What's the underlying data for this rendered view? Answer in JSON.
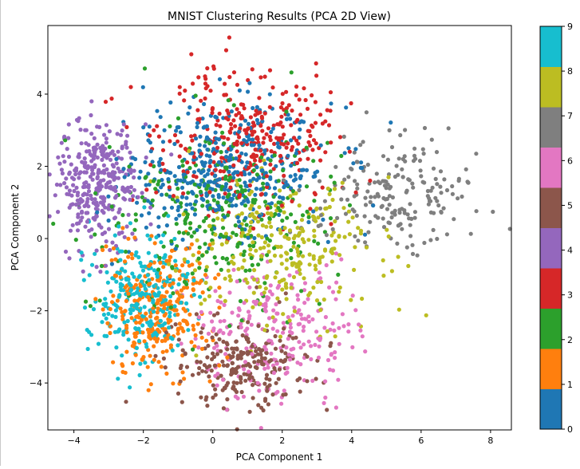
{
  "chart_data": {
    "type": "scatter",
    "title": "MNIST Clustering Results (PCA 2D View)",
    "xlabel": "PCA Component 1",
    "ylabel": "PCA Component 2",
    "xlim": [
      -4.75,
      8.6
    ],
    "ylim": [
      -5.3,
      5.9
    ],
    "x_ticks": [
      "−4",
      "−2",
      "0",
      "2",
      "4",
      "6",
      "8"
    ],
    "x_tick_values": [
      -4,
      -2,
      0,
      2,
      4,
      6,
      8
    ],
    "y_ticks": [
      "−4",
      "−2",
      "0",
      "2",
      "4"
    ],
    "y_tick_values": [
      -4,
      -2,
      0,
      2,
      4
    ],
    "grid": false,
    "colormap": "tab10",
    "colorbar": {
      "range": [
        0,
        9
      ],
      "tick_labels": [
        "0",
        "1",
        "2",
        "3",
        "4",
        "5",
        "6",
        "7",
        "8",
        "9"
      ],
      "colors": [
        "#1f77b4",
        "#ff7f0e",
        "#2ca02c",
        "#d62728",
        "#9467bd",
        "#8c564b",
        "#e377c2",
        "#7f7f7f",
        "#bcbd22",
        "#17becf"
      ]
    },
    "clusters": [
      {
        "label": 0,
        "color": "#1f77b4",
        "center": [
          0.3,
          1.9
        ],
        "spread": [
          1.5,
          0.9
        ],
        "approx_points": 420
      },
      {
        "label": 1,
        "color": "#ff7f0e",
        "center": [
          -1.6,
          -2.0
        ],
        "spread": [
          0.75,
          0.9
        ],
        "approx_points": 300
      },
      {
        "label": 2,
        "color": "#2ca02c",
        "center": [
          0.2,
          0.7
        ],
        "spread": [
          1.7,
          1.2
        ],
        "approx_points": 300
      },
      {
        "label": 3,
        "color": "#d62728",
        "center": [
          1.0,
          2.6
        ],
        "spread": [
          1.3,
          1.0
        ],
        "approx_points": 330
      },
      {
        "label": 4,
        "color": "#9467bd",
        "center": [
          -3.3,
          1.6
        ],
        "spread": [
          0.55,
          0.9
        ],
        "approx_points": 330
      },
      {
        "label": 5,
        "color": "#8c564b",
        "center": [
          0.9,
          -3.5
        ],
        "spread": [
          1.0,
          0.6
        ],
        "approx_points": 230
      },
      {
        "label": 6,
        "color": "#e377c2",
        "center": [
          1.8,
          -2.6
        ],
        "spread": [
          1.2,
          0.9
        ],
        "approx_points": 250
      },
      {
        "label": 7,
        "color": "#7f7f7f",
        "center": [
          5.3,
          1.2
        ],
        "spread": [
          1.2,
          0.8
        ],
        "approx_points": 200
      },
      {
        "label": 8,
        "color": "#bcbd22",
        "center": [
          2.0,
          -0.4
        ],
        "spread": [
          1.3,
          1.0
        ],
        "approx_points": 280
      },
      {
        "label": 9,
        "color": "#17becf",
        "center": [
          -2.1,
          -1.6
        ],
        "spread": [
          0.7,
          0.9
        ],
        "approx_points": 260
      }
    ]
  }
}
